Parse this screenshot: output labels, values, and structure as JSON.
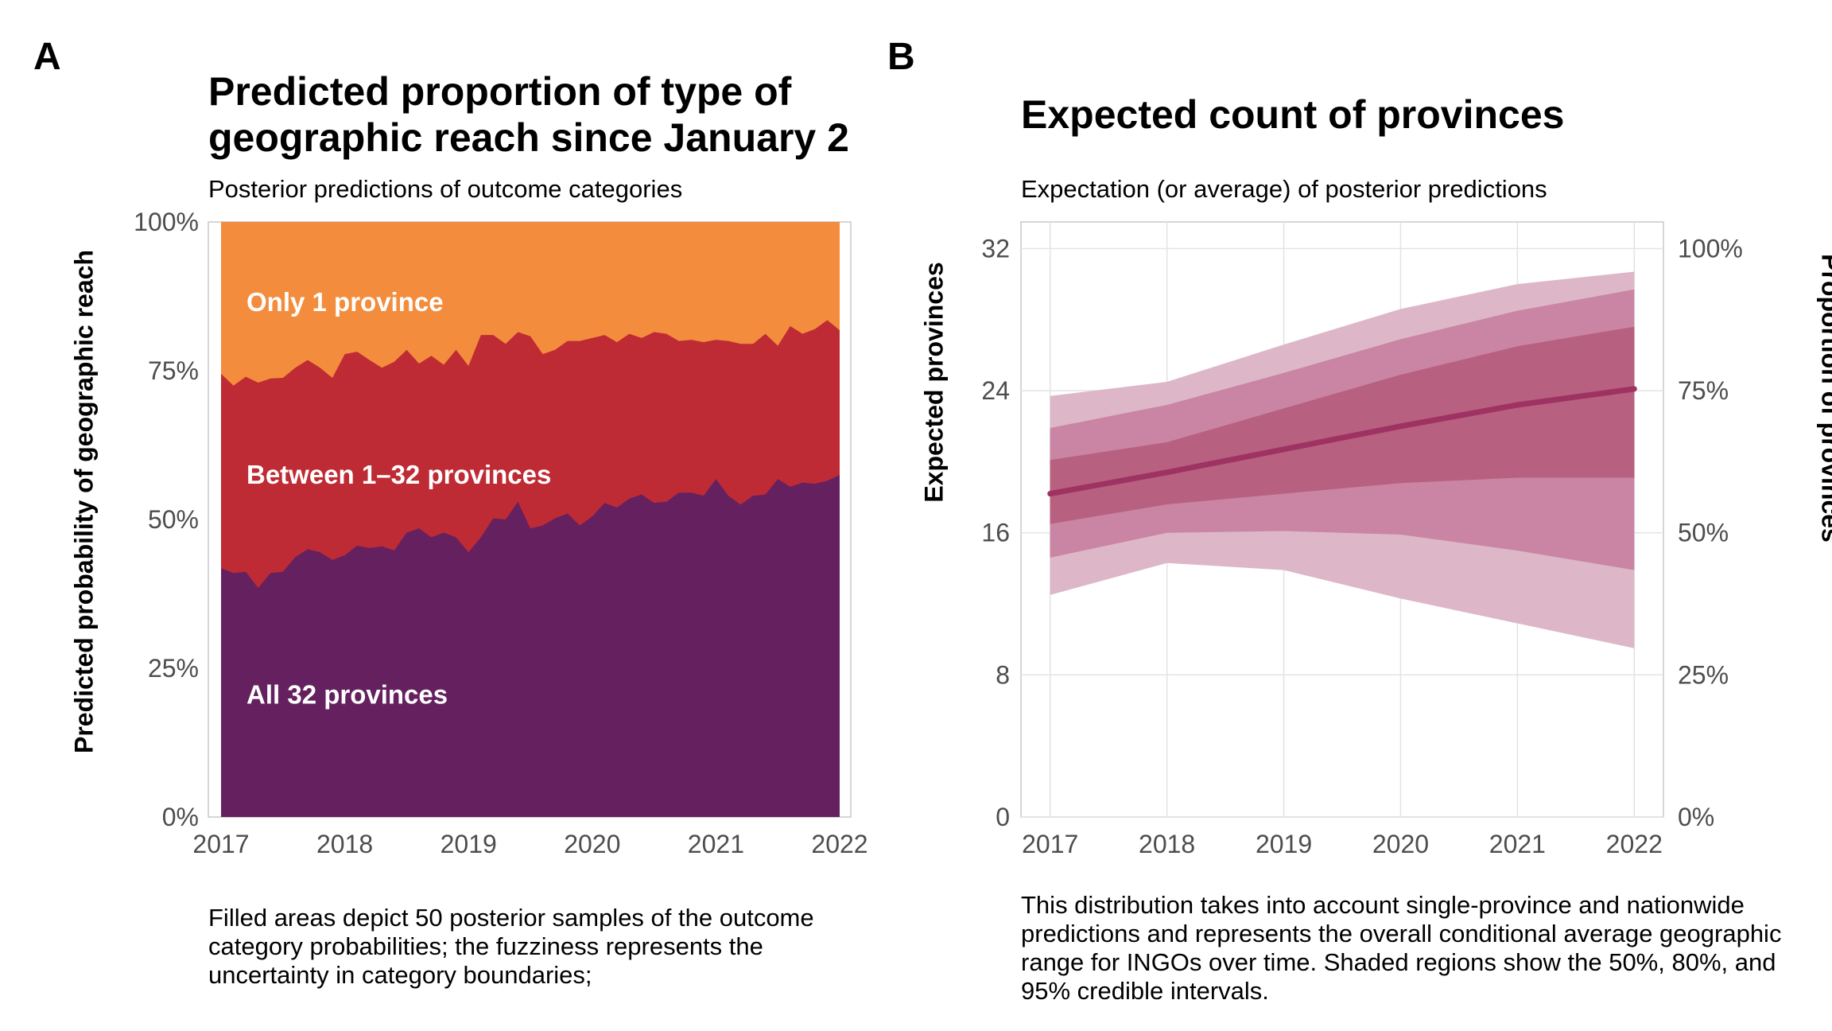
{
  "chart_data": [
    {
      "panel": "A",
      "type": "area",
      "stacked": true,
      "title": "Predicted proportion of type of geographic reach since January 2",
      "subtitle": "Posterior predictions of outcome categories",
      "xlabel": "",
      "ylabel": "Predicted probability of geographic reach",
      "caption": "Filled areas depict 50 posterior samples of the outcome category probabilities; the fuzziness represents the uncertainty in category boundaries;",
      "xlim": [
        2017,
        2022
      ],
      "ylim": [
        0,
        1
      ],
      "x_ticks": [
        "2017",
        "2018",
        "2019",
        "2020",
        "2021",
        "2022"
      ],
      "y_ticks": [
        "0%",
        "25%",
        "50%",
        "75%",
        "100%"
      ],
      "x": [
        2017.0,
        2017.1,
        2017.2,
        2017.3,
        2017.4,
        2017.5,
        2017.6,
        2017.7,
        2017.8,
        2017.9,
        2018.0,
        2018.1,
        2018.2,
        2018.3,
        2018.4,
        2018.5,
        2018.6,
        2018.7,
        2018.8,
        2018.9,
        2019.0,
        2019.1,
        2019.2,
        2019.3,
        2019.4,
        2019.5,
        2019.6,
        2019.7,
        2019.8,
        2019.9,
        2020.0,
        2020.1,
        2020.2,
        2020.3,
        2020.4,
        2020.5,
        2020.6,
        2020.7,
        2020.8,
        2020.9,
        2021.0,
        2021.1,
        2021.2,
        2021.3,
        2021.4,
        2021.5,
        2021.6,
        2021.7,
        2021.8,
        2021.9,
        2022.0
      ],
      "series": [
        {
          "name": "All 32 provinces",
          "color": "#65215f",
          "upper": [
            0.418,
            0.41,
            0.412,
            0.385,
            0.41,
            0.412,
            0.437,
            0.45,
            0.445,
            0.432,
            0.44,
            0.456,
            0.452,
            0.455,
            0.448,
            0.478,
            0.485,
            0.47,
            0.478,
            0.47,
            0.445,
            0.47,
            0.502,
            0.5,
            0.53,
            0.485,
            0.49,
            0.502,
            0.51,
            0.49,
            0.505,
            0.528,
            0.52,
            0.535,
            0.542,
            0.528,
            0.53,
            0.545,
            0.545,
            0.54,
            0.568,
            0.54,
            0.525,
            0.54,
            0.542,
            0.568,
            0.555,
            0.562,
            0.56,
            0.565,
            0.575
          ]
        },
        {
          "name": "Between 1–32 provinces",
          "color": "#bf2b34",
          "upper": [
            0.745,
            0.725,
            0.74,
            0.73,
            0.737,
            0.738,
            0.755,
            0.768,
            0.755,
            0.738,
            0.778,
            0.782,
            0.768,
            0.755,
            0.765,
            0.785,
            0.762,
            0.775,
            0.76,
            0.785,
            0.758,
            0.81,
            0.81,
            0.795,
            0.815,
            0.808,
            0.778,
            0.785,
            0.8,
            0.8,
            0.805,
            0.81,
            0.798,
            0.812,
            0.805,
            0.815,
            0.812,
            0.8,
            0.802,
            0.798,
            0.802,
            0.8,
            0.795,
            0.795,
            0.812,
            0.792,
            0.825,
            0.812,
            0.82,
            0.835,
            0.818
          ]
        },
        {
          "name": "Only 1 province",
          "color": "#f38d3d",
          "upper": [
            1,
            1,
            1,
            1,
            1,
            1,
            1,
            1,
            1,
            1,
            1,
            1,
            1,
            1,
            1,
            1,
            1,
            1,
            1,
            1,
            1,
            1,
            1,
            1,
            1,
            1,
            1,
            1,
            1,
            1,
            1,
            1,
            1,
            1,
            1,
            1,
            1,
            1,
            1,
            1,
            1,
            1,
            1,
            1,
            1,
            1,
            1,
            1,
            1,
            1,
            1
          ]
        }
      ],
      "area_labels": [
        "Only 1 province",
        "Between 1–32 provinces",
        "All 32 provinces"
      ]
    },
    {
      "panel": "B",
      "type": "line",
      "title": "Expected count of provinces",
      "subtitle": "Expectation (or average) of posterior predictions",
      "xlabel": "",
      "ylabel": "Expected provinces",
      "ylabel_right": "Proportion of provinces",
      "caption": "This distribution takes into account single-province and nationwide predictions and represents the overall conditional average geographic range for INGOs over time. Shaded regions show the 50%, 80%, and 95% credible intervals.",
      "xlim": [
        2016.75,
        2022.25
      ],
      "ylim": [
        0,
        33.5
      ],
      "x_ticks": [
        "2017",
        "2018",
        "2019",
        "2020",
        "2021",
        "2022"
      ],
      "y_ticks": [
        "0",
        "8",
        "16",
        "24",
        "32"
      ],
      "y_ticks_right": [
        "0%",
        "25%",
        "50%",
        "75%",
        "100%"
      ],
      "grid": true,
      "line_color": "#9e3262",
      "x": [
        2017,
        2018,
        2019,
        2020,
        2021,
        2022
      ],
      "mean": [
        18.2,
        19.4,
        20.7,
        22.0,
        23.2,
        24.1
      ],
      "intervals": [
        {
          "level": "95%",
          "color": "#ddb7c7",
          "lower": [
            12.5,
            14.3,
            13.9,
            12.3,
            10.9,
            9.5
          ],
          "upper": [
            23.7,
            24.5,
            26.6,
            28.6,
            30.0,
            30.7
          ]
        },
        {
          "level": "80%",
          "color": "#c985a3",
          "lower": [
            14.6,
            16.0,
            16.1,
            15.9,
            15.0,
            13.9
          ],
          "upper": [
            21.9,
            23.2,
            25.0,
            26.9,
            28.5,
            29.7
          ]
        },
        {
          "level": "50%",
          "color": "#b8607f",
          "lower": [
            16.5,
            17.6,
            18.2,
            18.8,
            19.1,
            19.1
          ],
          "upper": [
            20.1,
            21.1,
            23.0,
            24.9,
            26.5,
            27.6
          ]
        }
      ]
    }
  ]
}
